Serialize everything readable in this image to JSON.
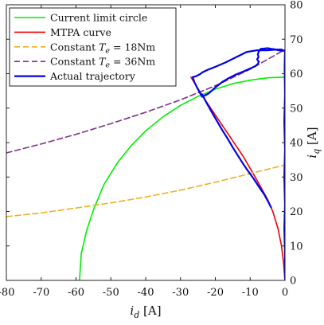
{
  "chart_data": {
    "type": "line",
    "xlabel": "i_d [A]",
    "ylabel": "i_q [A]",
    "xlabel_parts": {
      "main": "i",
      "sub": "d",
      "unit": " [A]"
    },
    "ylabel_parts": {
      "main": "i",
      "sub": "q",
      "unit": " [A]"
    },
    "xlim": [
      -80,
      0
    ],
    "ylim": [
      0,
      80
    ],
    "x_ticks": [
      -80,
      -70,
      -60,
      -50,
      -40,
      -30,
      -20,
      -10,
      0
    ],
    "y_ticks": [
      0,
      10,
      20,
      30,
      40,
      50,
      60,
      70,
      80
    ],
    "x_tick_labels": [
      "-80",
      "-70",
      "-60",
      "-50",
      "-40",
      "-30",
      "-20",
      "-10",
      "0"
    ],
    "y_tick_labels": [
      "0",
      "10",
      "20",
      "30",
      "40",
      "50",
      "60",
      "70",
      "80"
    ],
    "y_axis_position": "right",
    "grid": false,
    "legend_position": "top-left",
    "series": [
      {
        "name": "Current limit circle",
        "color": "#00ee00",
        "style": "solid",
        "x": [
          -59,
          -58.5,
          -57,
          -55,
          -52,
          -48,
          -44,
          -40,
          -35,
          -30,
          -25,
          -20,
          -15,
          -10,
          -5,
          0
        ],
        "y": [
          0,
          7.7,
          14.3,
          20.5,
          27.8,
          34.3,
          39.3,
          43.4,
          47.5,
          50.8,
          53.4,
          55.5,
          57.1,
          58.1,
          58.8,
          59
        ]
      },
      {
        "name": "MTPA curve",
        "color": "#ee0000",
        "style": "solid",
        "x": [
          0,
          -0.4,
          -1,
          -2,
          -3.5,
          -5,
          -8,
          -12,
          -16,
          -20,
          -24,
          -27
        ],
        "y": [
          0,
          5,
          10,
          15,
          20,
          23.5,
          29,
          36,
          42,
          48,
          54,
          59
        ]
      },
      {
        "name": "Constant T_e = 18Nm",
        "label_parts": {
          "main": "Constant ",
          "sym": "T",
          "sub": "e",
          "rest": " = 18Nm"
        },
        "color": "#edb120",
        "style": "dashed",
        "x": [
          -80,
          -70,
          -60,
          -50,
          -40,
          -30,
          -20,
          -10,
          0
        ],
        "y": [
          18.5,
          19.6,
          21,
          22.5,
          24.2,
          26.2,
          28.5,
          31,
          33.5
        ]
      },
      {
        "name": "Constant T_e = 36Nm",
        "label_parts": {
          "main": "Constant ",
          "sym": "T",
          "sub": "e",
          "rest": " = 36Nm"
        },
        "color": "#7e2f8e",
        "style": "dashed",
        "x": [
          -80,
          -70,
          -60,
          -50,
          -40,
          -30,
          -20,
          -10,
          0
        ],
        "y": [
          37,
          39.6,
          42.4,
          45.5,
          48.8,
          52.4,
          56.5,
          61.3,
          67
        ]
      },
      {
        "name": "Actual trajectory",
        "color": "#0000ee",
        "style": "solid",
        "x": [
          0,
          0,
          -0.2,
          0,
          -0.2,
          0,
          -0.2,
          0,
          -0.1,
          0,
          -1,
          -2.5,
          -5,
          -8,
          -11,
          -14,
          -17,
          -20,
          -22,
          -23.5,
          -24.5,
          -25.5,
          -26.5,
          -26,
          -25,
          -23.8,
          -22,
          -20,
          -18,
          -16,
          -14,
          -12,
          -10,
          -8.5,
          -7.8,
          -7.5,
          -7.8,
          -8,
          -7.6,
          -7.8,
          -7.5,
          -7,
          -6,
          -5,
          -4,
          -3,
          -2,
          -1,
          0
        ],
        "y": [
          0.5,
          8,
          15,
          22,
          30,
          38,
          46,
          54,
          62,
          66.5,
          67,
          67,
          66.8,
          66.8,
          66.3,
          64.8,
          63.3,
          62,
          61.2,
          60.5,
          59.8,
          59.3,
          59,
          57.5,
          55.5,
          53.3,
          54.2,
          56,
          57.6,
          58.8,
          59.8,
          60.6,
          61.5,
          62.2,
          62.8,
          63.5,
          63.8,
          64.2,
          64.8,
          65.6,
          66.5,
          67.2,
          67.3,
          67.4,
          67.2,
          67.1,
          66.8,
          66.7,
          66.6
        ]
      },
      {
        "name": "Actual trajectory (descent)",
        "legend": false,
        "color": "#0000ee",
        "style": "solid",
        "x": [
          -23.8,
          -22.5,
          -21,
          -19.5,
          -18,
          -16.5,
          -15,
          -13.5,
          -12,
          -10.5,
          -9,
          -7.5,
          -6,
          -4.8,
          -4
        ],
        "y": [
          54,
          51.5,
          48.8,
          46.2,
          43.6,
          41.2,
          38.6,
          36.2,
          33.8,
          31.6,
          29.5,
          27.2,
          25,
          22.8,
          21.2
        ]
      }
    ]
  }
}
